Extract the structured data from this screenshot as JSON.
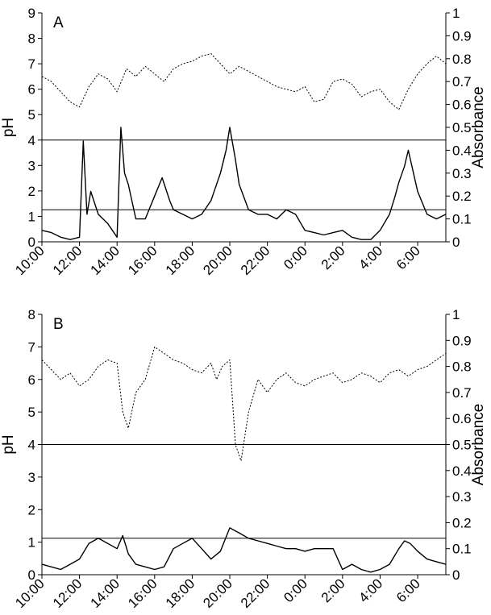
{
  "chart_data": [
    {
      "type": "line",
      "panel_label": "A",
      "x_tick_labels": [
        "10:00",
        "12:00",
        "14:00",
        "16:00",
        "18:00",
        "20:00",
        "22:00",
        "0:00",
        "2:00",
        "4:00",
        "6:00"
      ],
      "x_range_hours": [
        10,
        31.5
      ],
      "ylabel_left": "pH",
      "ylabel_right": "Absorbance",
      "ylim_left": [
        0,
        9
      ],
      "yticks_left": [
        0,
        1,
        2,
        3,
        4,
        5,
        6,
        7,
        8,
        9
      ],
      "ylim_right": [
        0,
        1
      ],
      "yticks_right": [
        "0",
        "0.1",
        "0.2",
        "0.3",
        "0.4",
        "0.5",
        "0.6",
        "0.7",
        "0.8",
        "0.9",
        "1"
      ],
      "reference_lines": [
        {
          "axis": "left",
          "value": 4
        },
        {
          "axis": "right",
          "value": 0.14
        }
      ],
      "series": [
        {
          "axis": "left",
          "style": "dotted",
          "x": [
            10.0,
            10.5,
            11.0,
            11.5,
            12.0,
            12.5,
            13.0,
            13.5,
            14.0,
            14.5,
            15.0,
            15.5,
            16.0,
            16.5,
            17.0,
            17.5,
            18.0,
            18.5,
            19.0,
            19.5,
            20.0,
            20.5,
            21.0,
            21.5,
            22.0,
            22.5,
            23.0,
            23.5,
            24.0,
            24.5,
            25.0,
            25.5,
            26.0,
            26.5,
            27.0,
            27.5,
            28.0,
            28.5,
            29.0,
            29.5,
            30.0,
            30.5,
            31.0,
            31.5
          ],
          "y": [
            6.5,
            6.3,
            5.9,
            5.5,
            5.3,
            6.1,
            6.6,
            6.4,
            5.9,
            6.8,
            6.5,
            6.9,
            6.6,
            6.3,
            6.8,
            7.0,
            7.1,
            7.3,
            7.4,
            7.0,
            6.6,
            6.9,
            6.7,
            6.5,
            6.3,
            6.1,
            6.0,
            5.9,
            6.1,
            5.5,
            5.6,
            6.3,
            6.4,
            6.2,
            5.7,
            5.9,
            6.0,
            5.5,
            5.2,
            6.0,
            6.6,
            7.0,
            7.3,
            7.0
          ]
        },
        {
          "axis": "right",
          "style": "solid",
          "x": [
            10.0,
            10.5,
            11.0,
            11.5,
            12.0,
            12.2,
            12.4,
            12.6,
            13.0,
            13.5,
            14.0,
            14.2,
            14.4,
            14.6,
            15.0,
            15.5,
            16.0,
            16.4,
            16.8,
            17.0,
            17.5,
            18.0,
            18.5,
            19.0,
            19.5,
            19.8,
            20.0,
            20.3,
            20.5,
            21.0,
            21.5,
            22.0,
            22.5,
            23.0,
            23.5,
            24.0,
            24.5,
            25.0,
            25.5,
            26.0,
            26.5,
            27.0,
            27.5,
            28.0,
            28.5,
            28.8,
            29.0,
            29.3,
            29.5,
            30.0,
            30.5,
            31.0,
            31.5
          ],
          "y": [
            0.05,
            0.04,
            0.02,
            0.01,
            0.02,
            0.44,
            0.12,
            0.22,
            0.12,
            0.08,
            0.02,
            0.5,
            0.3,
            0.25,
            0.1,
            0.1,
            0.2,
            0.28,
            0.18,
            0.14,
            0.12,
            0.1,
            0.12,
            0.18,
            0.3,
            0.4,
            0.5,
            0.36,
            0.25,
            0.14,
            0.12,
            0.12,
            0.1,
            0.14,
            0.12,
            0.05,
            0.04,
            0.03,
            0.04,
            0.05,
            0.02,
            0.01,
            0.01,
            0.05,
            0.12,
            0.2,
            0.26,
            0.33,
            0.4,
            0.22,
            0.12,
            0.1,
            0.12
          ]
        }
      ]
    },
    {
      "type": "line",
      "panel_label": "B",
      "x_tick_labels": [
        "10:00",
        "12:00",
        "14:00",
        "16:00",
        "18:00",
        "20:00",
        "22:00",
        "0:00",
        "2:00",
        "4:00",
        "6:00"
      ],
      "x_range_hours": [
        10,
        31.5
      ],
      "ylabel_left": "pH",
      "ylabel_right": "Absorbance",
      "ylim_left": [
        0,
        8
      ],
      "yticks_left": [
        0,
        1,
        2,
        3,
        4,
        5,
        6,
        7,
        8
      ],
      "ylim_right": [
        0,
        1
      ],
      "yticks_right": [
        "0",
        "0.1",
        "0.2",
        "0.3",
        "0.4",
        "0.5",
        "0.6",
        "0.7",
        "0.8",
        "0.9",
        "1"
      ],
      "reference_lines": [
        {
          "axis": "left",
          "value": 4
        },
        {
          "axis": "right",
          "value": 0.14
        }
      ],
      "series": [
        {
          "axis": "left",
          "style": "dotted",
          "x": [
            10.0,
            10.5,
            11.0,
            11.5,
            12.0,
            12.5,
            13.0,
            13.5,
            14.0,
            14.3,
            14.6,
            15.0,
            15.5,
            16.0,
            16.5,
            17.0,
            17.5,
            18.0,
            18.5,
            19.0,
            19.3,
            19.6,
            20.0,
            20.3,
            20.6,
            21.0,
            21.5,
            22.0,
            22.5,
            23.0,
            23.5,
            24.0,
            24.5,
            25.0,
            25.5,
            26.0,
            26.5,
            27.0,
            27.5,
            28.0,
            28.5,
            29.0,
            29.5,
            30.0,
            30.5,
            31.0,
            31.5
          ],
          "y": [
            6.6,
            6.3,
            6.0,
            6.2,
            5.8,
            6.0,
            6.4,
            6.6,
            6.5,
            5.0,
            4.5,
            5.6,
            6.0,
            7.0,
            6.8,
            6.6,
            6.5,
            6.3,
            6.2,
            6.5,
            6.0,
            6.4,
            6.6,
            4.0,
            3.5,
            5.0,
            6.0,
            5.6,
            6.0,
            6.2,
            5.9,
            5.8,
            6.0,
            6.1,
            6.2,
            5.9,
            6.0,
            6.2,
            6.1,
            5.9,
            6.2,
            6.3,
            6.1,
            6.3,
            6.4,
            6.6,
            6.8
          ]
        },
        {
          "axis": "right",
          "style": "solid",
          "x": [
            10.0,
            10.5,
            11.0,
            11.5,
            12.0,
            12.5,
            13.0,
            13.5,
            14.0,
            14.3,
            14.6,
            15.0,
            15.5,
            16.0,
            16.5,
            17.0,
            17.5,
            18.0,
            18.5,
            19.0,
            19.5,
            20.0,
            20.5,
            21.0,
            21.5,
            22.0,
            22.5,
            23.0,
            23.5,
            24.0,
            24.5,
            25.0,
            25.5,
            26.0,
            26.5,
            27.0,
            27.5,
            28.0,
            28.5,
            29.0,
            29.3,
            29.6,
            30.0,
            30.5,
            31.0,
            31.5
          ],
          "y": [
            0.04,
            0.03,
            0.02,
            0.04,
            0.06,
            0.12,
            0.14,
            0.12,
            0.1,
            0.15,
            0.08,
            0.04,
            0.03,
            0.02,
            0.03,
            0.1,
            0.12,
            0.14,
            0.1,
            0.06,
            0.09,
            0.18,
            0.16,
            0.14,
            0.13,
            0.12,
            0.11,
            0.1,
            0.1,
            0.09,
            0.1,
            0.1,
            0.1,
            0.02,
            0.04,
            0.02,
            0.01,
            0.02,
            0.04,
            0.1,
            0.13,
            0.12,
            0.09,
            0.06,
            0.05,
            0.04
          ]
        }
      ]
    }
  ]
}
